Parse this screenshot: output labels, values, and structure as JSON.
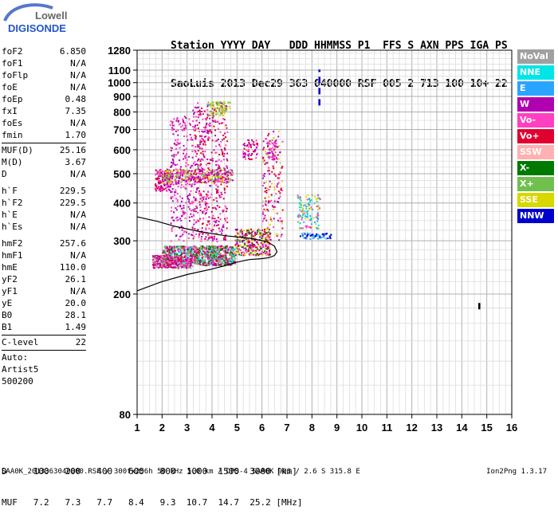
{
  "logo": {
    "top": "Lowell",
    "bottom": "DIGISONDE"
  },
  "header": {
    "line1": "Station YYYY DAY   DDD HHMMSS P1  FFS S AXN PPS IGA PS",
    "line2": "SaoLuis 2013 Dec29 363 040000 RSF 005 2 713 100 10+ 22"
  },
  "params": {
    "group1": [
      {
        "label": "foF2",
        "value": "6.850"
      },
      {
        "label": "foF1",
        "value": "N/A"
      },
      {
        "label": "foFlp",
        "value": "N/A"
      },
      {
        "label": "foE",
        "value": "N/A"
      },
      {
        "label": "foEp",
        "value": "0.48"
      },
      {
        "label": "fxI",
        "value": "7.35"
      },
      {
        "label": "foEs",
        "value": "N/A"
      },
      {
        "label": "fmin",
        "value": "1.70"
      }
    ],
    "group2": [
      {
        "label": "MUF(D)",
        "value": "25.16"
      },
      {
        "label": "M(D)",
        "value": "3.67"
      },
      {
        "label": "D",
        "value": "N/A"
      }
    ],
    "group3": [
      {
        "label": "h`F",
        "value": "229.5"
      },
      {
        "label": "h`F2",
        "value": "229.5"
      },
      {
        "label": "h`E",
        "value": "N/A"
      },
      {
        "label": "h`Es",
        "value": "N/A"
      }
    ],
    "group4": [
      {
        "label": "hmF2",
        "value": "257.6"
      },
      {
        "label": "hmF1",
        "value": "N/A"
      },
      {
        "label": "hmE",
        "value": "110.0"
      },
      {
        "label": "yF2",
        "value": "26.1"
      },
      {
        "label": "yF1",
        "value": "N/A"
      },
      {
        "label": "yE",
        "value": "20.0"
      },
      {
        "label": "B0",
        "value": "28.1"
      },
      {
        "label": "B1",
        "value": "1.49"
      }
    ],
    "clevel": {
      "label": "C-level",
      "value": "22"
    },
    "extra": [
      "Auto:",
      "Artist5",
      "500200"
    ]
  },
  "legend": [
    {
      "label": "NoVal",
      "color": "#a0a0a0"
    },
    {
      "label": "NNE",
      "color": "#00e5e5"
    },
    {
      "label": "E",
      "color": "#2aa5ff"
    },
    {
      "label": "W",
      "color": "#b000b0"
    },
    {
      "label": "Vo-",
      "color": "#ff40c0"
    },
    {
      "label": "Vo+",
      "color": "#e00030"
    },
    {
      "label": "SSW",
      "color": "#ffb0b0"
    },
    {
      "label": "X-",
      "color": "#007a00"
    },
    {
      "label": "X+",
      "color": "#70c050"
    },
    {
      "label": "SSE",
      "color": "#d8d800"
    },
    {
      "label": "NNW",
      "color": "#0000cc"
    }
  ],
  "chart_data": {
    "type": "scatter",
    "title": "",
    "xlabel": "",
    "ylabel": "",
    "xlim": [
      1,
      16
    ],
    "ylim_log": [
      80,
      1280
    ],
    "x_ticks": [
      1,
      2,
      3,
      4,
      5,
      6,
      7,
      8,
      9,
      10,
      11,
      12,
      13,
      14,
      15,
      16
    ],
    "y_ticks": [
      80,
      200,
      300,
      400,
      500,
      600,
      700,
      800,
      900,
      1000,
      1100,
      1280
    ],
    "grid": true,
    "echo_clusters": [
      {
        "x_range": [
          1.7,
          2.3
        ],
        "y_range": [
          440,
          520
        ],
        "colors": [
          "#ff40c0",
          "#b000b0",
          "#e00030"
        ],
        "n": 160
      },
      {
        "x_range": [
          2.0,
          4.8
        ],
        "y_range": [
          470,
          520
        ],
        "colors": [
          "#d8d800",
          "#70c050",
          "#ff40c0",
          "#b000b0"
        ],
        "n": 330
      },
      {
        "x_range": [
          2.0,
          4.9
        ],
        "y_range": [
          250,
          290
        ],
        "colors": [
          "#ff40c0",
          "#e00030",
          "#b000b0",
          "#007a00",
          "#00e5e5",
          "#70c050"
        ],
        "n": 900
      },
      {
        "x_range": [
          1.6,
          3.2
        ],
        "y_range": [
          245,
          270
        ],
        "colors": [
          "#ff40c0",
          "#e00030",
          "#b000b0",
          "#a0a0a0"
        ],
        "n": 300
      },
      {
        "x_range": [
          2.3,
          3.2
        ],
        "y_range": [
          300,
          780
        ],
        "colors": [
          "#b000b0",
          "#ff40c0"
        ],
        "n": 260
      },
      {
        "x_range": [
          3.2,
          4.6
        ],
        "y_range": [
          300,
          870
        ],
        "colors": [
          "#b000b0",
          "#ff40c0",
          "#e00030"
        ],
        "n": 500
      },
      {
        "x_range": [
          3.8,
          4.7
        ],
        "y_range": [
          780,
          870
        ],
        "colors": [
          "#d8d800",
          "#70c050"
        ],
        "n": 70
      },
      {
        "x_range": [
          4.9,
          6.3
        ],
        "y_range": [
          270,
          330
        ],
        "colors": [
          "#ff40c0",
          "#b000b0",
          "#e00030",
          "#d8d800",
          "#007a00"
        ],
        "n": 300
      },
      {
        "x_range": [
          5.2,
          5.8
        ],
        "y_range": [
          560,
          650
        ],
        "colors": [
          "#b000b0",
          "#ff40c0",
          "#e00030"
        ],
        "n": 60
      },
      {
        "x_range": [
          6.0,
          6.8
        ],
        "y_range": [
          300,
          700
        ],
        "colors": [
          "#ff40c0",
          "#d8d800",
          "#b000b0",
          "#e00030"
        ],
        "n": 160
      },
      {
        "x_range": [
          6.2,
          6.6
        ],
        "y_range": [
          560,
          650
        ],
        "colors": [
          "#b000b0",
          "#ff40c0"
        ],
        "n": 50
      },
      {
        "x_range": [
          7.4,
          8.3
        ],
        "y_range": [
          330,
          430
        ],
        "colors": [
          "#00e5e5",
          "#2aa5ff",
          "#d8d800",
          "#70c050",
          "#ff40c0"
        ],
        "n": 120
      },
      {
        "x_range": [
          7.5,
          8.8
        ],
        "y_range": [
          306,
          320
        ],
        "colors": [
          "#0000cc",
          "#2aa5ff"
        ],
        "n": 60
      }
    ],
    "traces": [
      {
        "name": "",
        "color": "#0000cc",
        "x": [
          8.3,
          8.3
        ],
        "y": [
          840,
          1105
        ]
      },
      {
        "name": "",
        "color": "#000000",
        "x": [
          14.7,
          14.7
        ],
        "y": [
          178,
          190
        ]
      }
    ],
    "profile_curve": {
      "x": [
        1.0,
        2.0,
        3.0,
        4.0,
        4.5,
        5.0,
        5.5,
        6.0,
        6.3,
        6.5,
        6.6,
        6.5,
        6.2,
        5.5,
        4.5,
        3.5,
        2.5,
        1.8,
        1.0
      ],
      "y": [
        205,
        220,
        232,
        242,
        248,
        255,
        260,
        262,
        264,
        268,
        276,
        288,
        298,
        306,
        312,
        322,
        335,
        348,
        360
      ]
    }
  },
  "muf_table": {
    "d_label": "D",
    "d_values": [
      "100",
      "200",
      "400",
      "600",
      "800",
      "1000",
      "1500",
      "3000"
    ],
    "d_unit": "[km]",
    "muf_label": "MUF",
    "muf_values": [
      "7.2",
      "7.3",
      "7.7",
      "8.4",
      "9.3",
      "10.7",
      "14.7",
      "25.2"
    ],
    "muf_unit": "[MHz]"
  },
  "footer": "SAA0K_2013363040000.RSF / 300fx256h 50 kHz 5.0 km / DPS-4 SAA0K 903 / 2.6 S 315.8 E",
  "version": "Ion2Png 1.3.17"
}
